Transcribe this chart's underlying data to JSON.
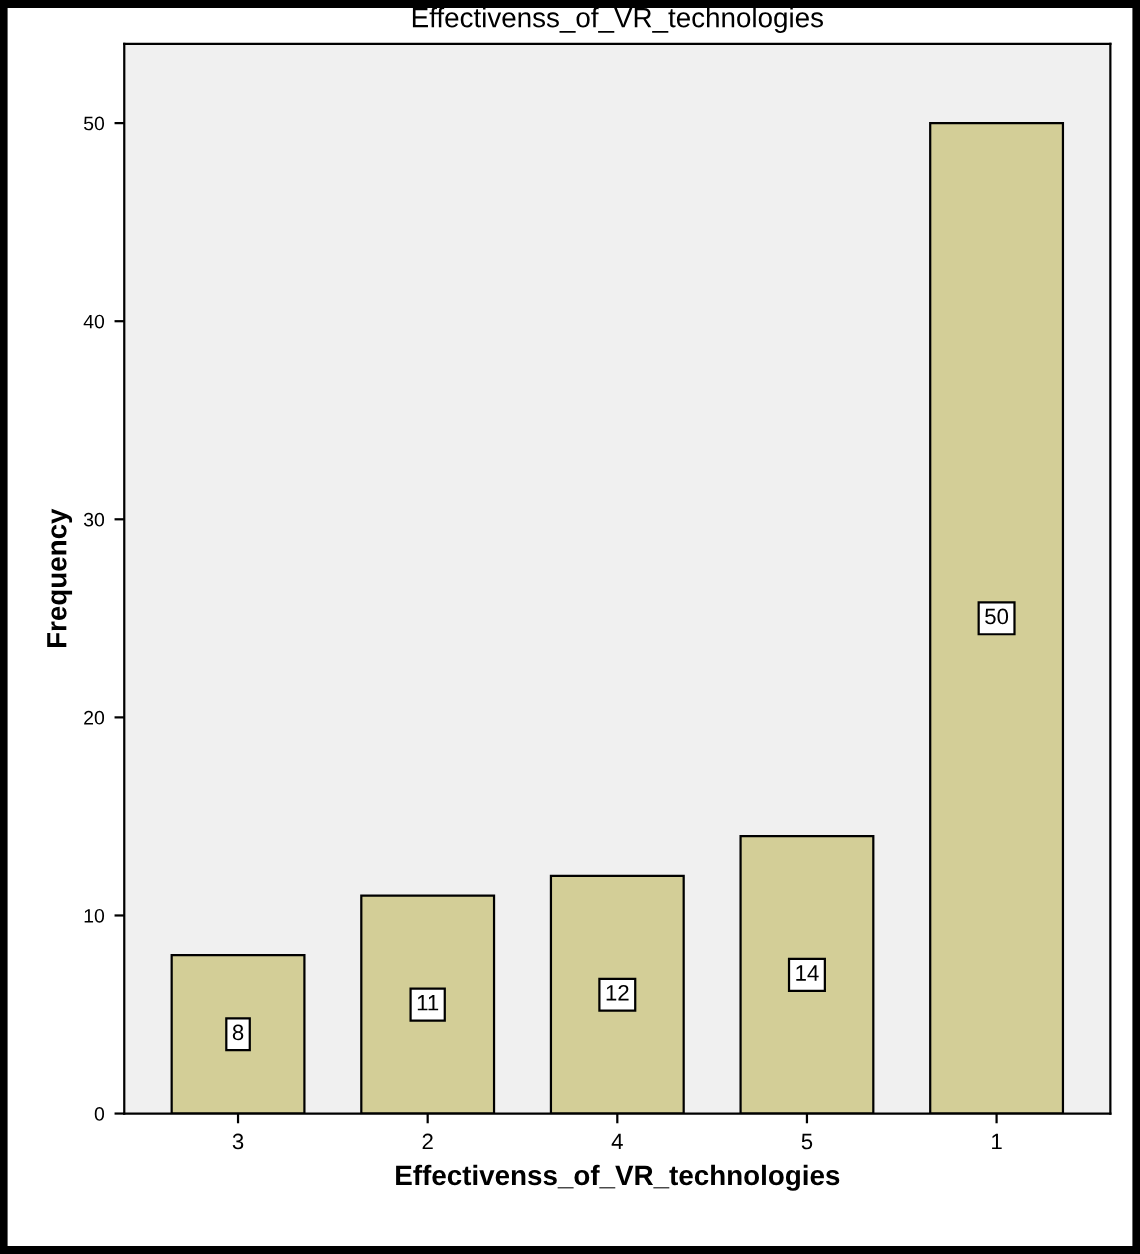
{
  "chart_data": {
    "type": "bar",
    "title": "Effectivenss_of_VR_technologies",
    "xlabel": "Effectivenss_of_VR_technologies",
    "ylabel": "Frequency",
    "categories": [
      "3",
      "2",
      "4",
      "5",
      "1"
    ],
    "values": [
      8,
      11,
      12,
      14,
      50
    ],
    "color": "#d3ce97",
    "ylim": [
      0,
      54
    ],
    "yticks": [
      0,
      10,
      20,
      30,
      40,
      50
    ],
    "data_labels": true,
    "grid": false,
    "legend": false
  }
}
